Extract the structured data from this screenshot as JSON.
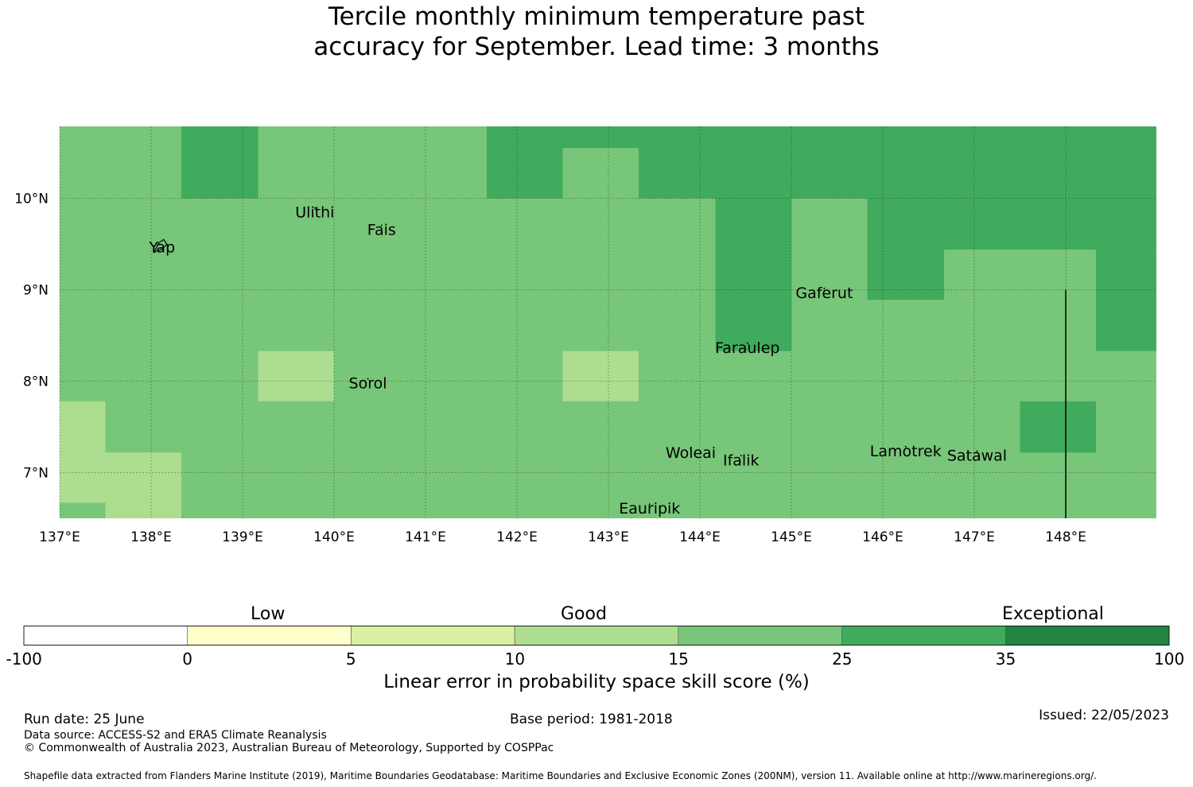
{
  "title": "Tercile monthly minimum temperature past\naccuracy for September. Lead time: 3 months",
  "map": {
    "lon_range": [
      137,
      149
    ],
    "lat_range": [
      6.5,
      10.8
    ],
    "x_ticks": [
      "137°E",
      "138°E",
      "139°E",
      "140°E",
      "141°E",
      "142°E",
      "143°E",
      "144°E",
      "145°E",
      "146°E",
      "147°E",
      "148°E"
    ],
    "y_ticks": [
      "10°N",
      "9°N",
      "8°N",
      "7°N"
    ],
    "x_tick_values": [
      137,
      138,
      139,
      140,
      141,
      142,
      143,
      144,
      145,
      146,
      147,
      148
    ],
    "y_tick_values": [
      10,
      9,
      8,
      7
    ],
    "grid": true,
    "cells": [
      {
        "lon": [
          137.0,
          148.99
        ],
        "lat": [
          6.5,
          10.8
        ],
        "category": "15-25"
      },
      {
        "lon": [
          138.33,
          139.17
        ],
        "lat": [
          10.0,
          10.8
        ],
        "category": "25-35"
      },
      {
        "lon": [
          141.67,
          148.99
        ],
        "lat": [
          10.0,
          10.8
        ],
        "category": "25-35"
      },
      {
        "lon": [
          142.5,
          143.33
        ],
        "lat": [
          10.0,
          10.55
        ],
        "category": "15-25"
      },
      {
        "lon": [
          144.17,
          145.0
        ],
        "lat": [
          8.33,
          10.0
        ],
        "category": "25-35"
      },
      {
        "lon": [
          145.83,
          148.99
        ],
        "lat": [
          9.44,
          10.0
        ],
        "category": "25-35"
      },
      {
        "lon": [
          145.83,
          146.67
        ],
        "lat": [
          8.89,
          9.44
        ],
        "category": "25-35"
      },
      {
        "lon": [
          148.33,
          148.99
        ],
        "lat": [
          8.33,
          9.44
        ],
        "category": "25-35"
      },
      {
        "lon": [
          147.5,
          148.33
        ],
        "lat": [
          7.22,
          7.78
        ],
        "category": "25-35"
      },
      {
        "lon": [
          139.17,
          140.0
        ],
        "lat": [
          7.78,
          8.33
        ],
        "category": "10-15"
      },
      {
        "lon": [
          142.5,
          143.33
        ],
        "lat": [
          7.78,
          8.33
        ],
        "category": "10-15"
      },
      {
        "lon": [
          137.0,
          137.5
        ],
        "lat": [
          7.22,
          7.78
        ],
        "category": "10-15"
      },
      {
        "lon": [
          137.0,
          138.33
        ],
        "lat": [
          6.67,
          7.22
        ],
        "category": "10-15"
      },
      {
        "lon": [
          137.5,
          138.33
        ],
        "lat": [
          6.5,
          6.67
        ],
        "category": "10-15"
      }
    ],
    "places": [
      {
        "name": "Ulithi",
        "lon": 139.79,
        "lat": 9.86
      },
      {
        "name": "Fais",
        "lon": 140.52,
        "lat": 9.67
      },
      {
        "name": "Yap",
        "lon": 138.12,
        "lat": 9.48
      },
      {
        "name": "Gaferut",
        "lon": 145.36,
        "lat": 8.98
      },
      {
        "name": "Faraulep",
        "lon": 144.52,
        "lat": 8.38
      },
      {
        "name": "Sorol",
        "lon": 140.37,
        "lat": 7.99
      },
      {
        "name": "Woleai",
        "lon": 143.9,
        "lat": 7.23
      },
      {
        "name": "Ifalik",
        "lon": 144.45,
        "lat": 7.15
      },
      {
        "name": "Lamotrek",
        "lon": 146.25,
        "lat": 7.25
      },
      {
        "name": "Satawal",
        "lon": 147.03,
        "lat": 7.2
      },
      {
        "name": "Eauripik",
        "lon": 143.45,
        "lat": 6.62
      }
    ],
    "boundary_line": {
      "lon": 148.0,
      "lat": [
        6.5,
        9.0
      ]
    }
  },
  "colorbar": {
    "categories": [
      "Low",
      "Good",
      "Exceptional"
    ],
    "ticks": [
      "-100",
      "0",
      "5",
      "10",
      "15",
      "25",
      "35",
      "100"
    ],
    "colors": [
      "#ffffff",
      "#ffffcc",
      "#d9f0a3",
      "#addd8e",
      "#78c679",
      "#41ab5d",
      "#238443"
    ],
    "title": "Linear error in probability space skill score (%)"
  },
  "category_colors": {
    "10-15": "#addd8e",
    "15-25": "#78c679",
    "25-35": "#41ab5d"
  },
  "footer": {
    "run_date": "Run date: 25 June",
    "base_period": "Base period: 1981-2018",
    "issued": "Issued: 22/05/2023",
    "data_source": "Data source: ACCESS-S2 and ERA5 Climate Reanalysis",
    "copyright": "© Commonwealth of Australia 2023, Australian Bureau of Meteorology, Supported by COSPPac",
    "shapefile": "Shapefile data extracted from Flanders Marine Institute (2019), Maritime Boundaries Geodatabase: Maritime Boundaries and Exclusive Economic Zones (200NM), version 11. Available online at http://www.marineregions.org/."
  }
}
